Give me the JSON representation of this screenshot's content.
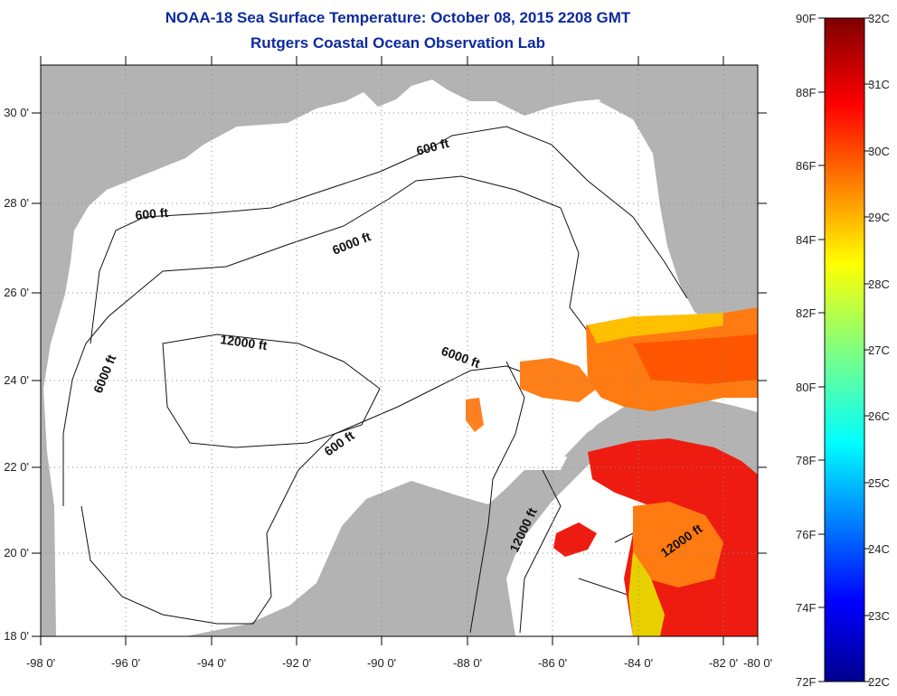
{
  "title": {
    "line1": "NOAA-18 Sea Surface Temperature:  October 08, 2015 2208 GMT",
    "line2": "Rutgers Coastal Ocean Observation Lab"
  },
  "map": {
    "lon_ticks": [
      "-98 0'",
      "-96 0'",
      "-94 0'",
      "-92 0'",
      "-90 0'",
      "-88 0'",
      "-86 0'",
      "-84 0'",
      "-82 0'",
      "-80 0'"
    ],
    "lat_ticks": [
      "30 0'",
      "28 0'",
      "26 0'",
      "24 0'",
      "22 0'",
      "20 0'",
      "18 0'"
    ],
    "contour_labels": {
      "c600_north": "600 ft",
      "c600_west": "600 ft",
      "c6000_north": "6000 ft",
      "c6000_west": "6000 ft",
      "c6000_east": "6000 ft",
      "c12000_center": "12000 ft",
      "c600_yucatan": "600 ft",
      "c12000_south": "12000 ft",
      "c12000_carib": "12000 ft"
    },
    "colors": {
      "land": "#b3b3b3",
      "ocean_no_data": "#ffffff",
      "grid": "#888888",
      "title": "#0d2a9e"
    }
  },
  "colorbar": {
    "fahrenheit_labels": [
      "90F",
      "88F",
      "86F",
      "84F",
      "82F",
      "80F",
      "78F",
      "76F",
      "74F",
      "72F"
    ],
    "celsius_labels": [
      "32C",
      "31C",
      "30C",
      "29C",
      "28C",
      "27C",
      "26C",
      "25C",
      "24C",
      "23C",
      "22C"
    ],
    "colormap": "jet",
    "range_c": [
      22,
      32
    ],
    "range_f": [
      72,
      90
    ]
  }
}
